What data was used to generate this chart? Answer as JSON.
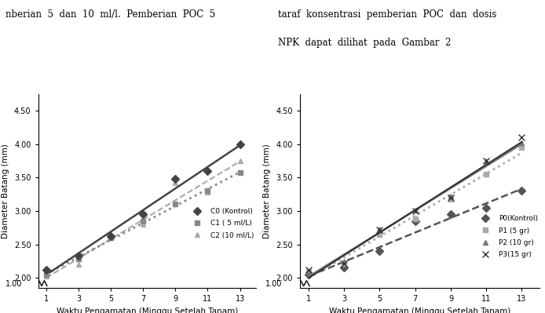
{
  "x": [
    1,
    3,
    5,
    7,
    9,
    11,
    13
  ],
  "chart1": {
    "ylabel": "Diameter Batang (mm)",
    "xlabel": "Waktu Pengamatan (Minggu Setelah Tanam)",
    "series": [
      {
        "label": "C0 (Kontrol)",
        "values": [
          2.12,
          2.33,
          2.62,
          2.95,
          3.48,
          3.6,
          4.0
        ],
        "color": "#444444",
        "linestyle": "-",
        "linewidth": 1.8,
        "marker": "D",
        "markersize": 5,
        "zorder": 4
      },
      {
        "label": "C1 ( 5 ml/L)",
        "values": [
          2.05,
          2.28,
          2.6,
          2.85,
          3.1,
          3.3,
          3.57
        ],
        "color": "#888888",
        "linestyle": ":",
        "linewidth": 2.0,
        "marker": "s",
        "markersize": 5,
        "zorder": 3
      },
      {
        "label": "C2 (10 ml/L)",
        "values": [
          2.03,
          2.2,
          2.62,
          2.8,
          3.42,
          3.28,
          3.75
        ],
        "color": "#aaaaaa",
        "linestyle": "--",
        "linewidth": 1.5,
        "marker": "^",
        "markersize": 5,
        "zorder": 2
      }
    ]
  },
  "chart2": {
    "ylabel": "Diameter Batang (mm)",
    "xlabel": "Waktu Pengamatan (Minggu Setelah Tanam)",
    "series": [
      {
        "label": "P0(Kontrol)",
        "values": [
          2.05,
          2.15,
          2.4,
          2.85,
          2.95,
          3.05,
          3.3
        ],
        "color": "#555555",
        "linestyle": "--",
        "linewidth": 1.8,
        "marker": "D",
        "markersize": 5,
        "zorder": 2
      },
      {
        "label": "P1 (5 gr)",
        "values": [
          2.1,
          2.22,
          2.65,
          2.88,
          3.18,
          3.55,
          3.95
        ],
        "color": "#aaaaaa",
        "linestyle": ":",
        "linewidth": 2.0,
        "marker": "s",
        "markersize": 5,
        "zorder": 3
      },
      {
        "label": "P2 (10 gr)",
        "values": [
          2.1,
          2.25,
          2.73,
          3.01,
          3.22,
          3.75,
          4.02
        ],
        "color": "#777777",
        "linestyle": "-",
        "linewidth": 1.8,
        "marker": "^",
        "markersize": 5,
        "zorder": 4
      },
      {
        "label": "P3(15 gr)",
        "values": [
          2.12,
          2.22,
          2.72,
          3.0,
          3.2,
          3.75,
          4.1
        ],
        "color": "#333333",
        "linestyle": "-",
        "linewidth": 1.5,
        "marker": "x",
        "markersize": 6,
        "zorder": 5
      }
    ]
  },
  "yticks": [
    2.0,
    2.5,
    3.0,
    3.5,
    4.0,
    4.5
  ],
  "xticks": [
    1,
    3,
    5,
    7,
    9,
    11,
    13
  ],
  "ymin": 1.85,
  "ymax": 4.75,
  "xmin": 0.5,
  "xmax": 14.0,
  "background_color": "#ffffff",
  "tick_fontsize": 7,
  "label_fontsize": 7.5,
  "legend_fontsize": 6.5,
  "header_left": "nberian  5  dan  10  ml/l.  Pemberian  POC  5",
  "header_right_line1": "taraf  konsentrasi  pemberian  POC  dan  dosis",
  "header_right_line2": "NPK  dapat  dilihat  pada  Gambar  2"
}
